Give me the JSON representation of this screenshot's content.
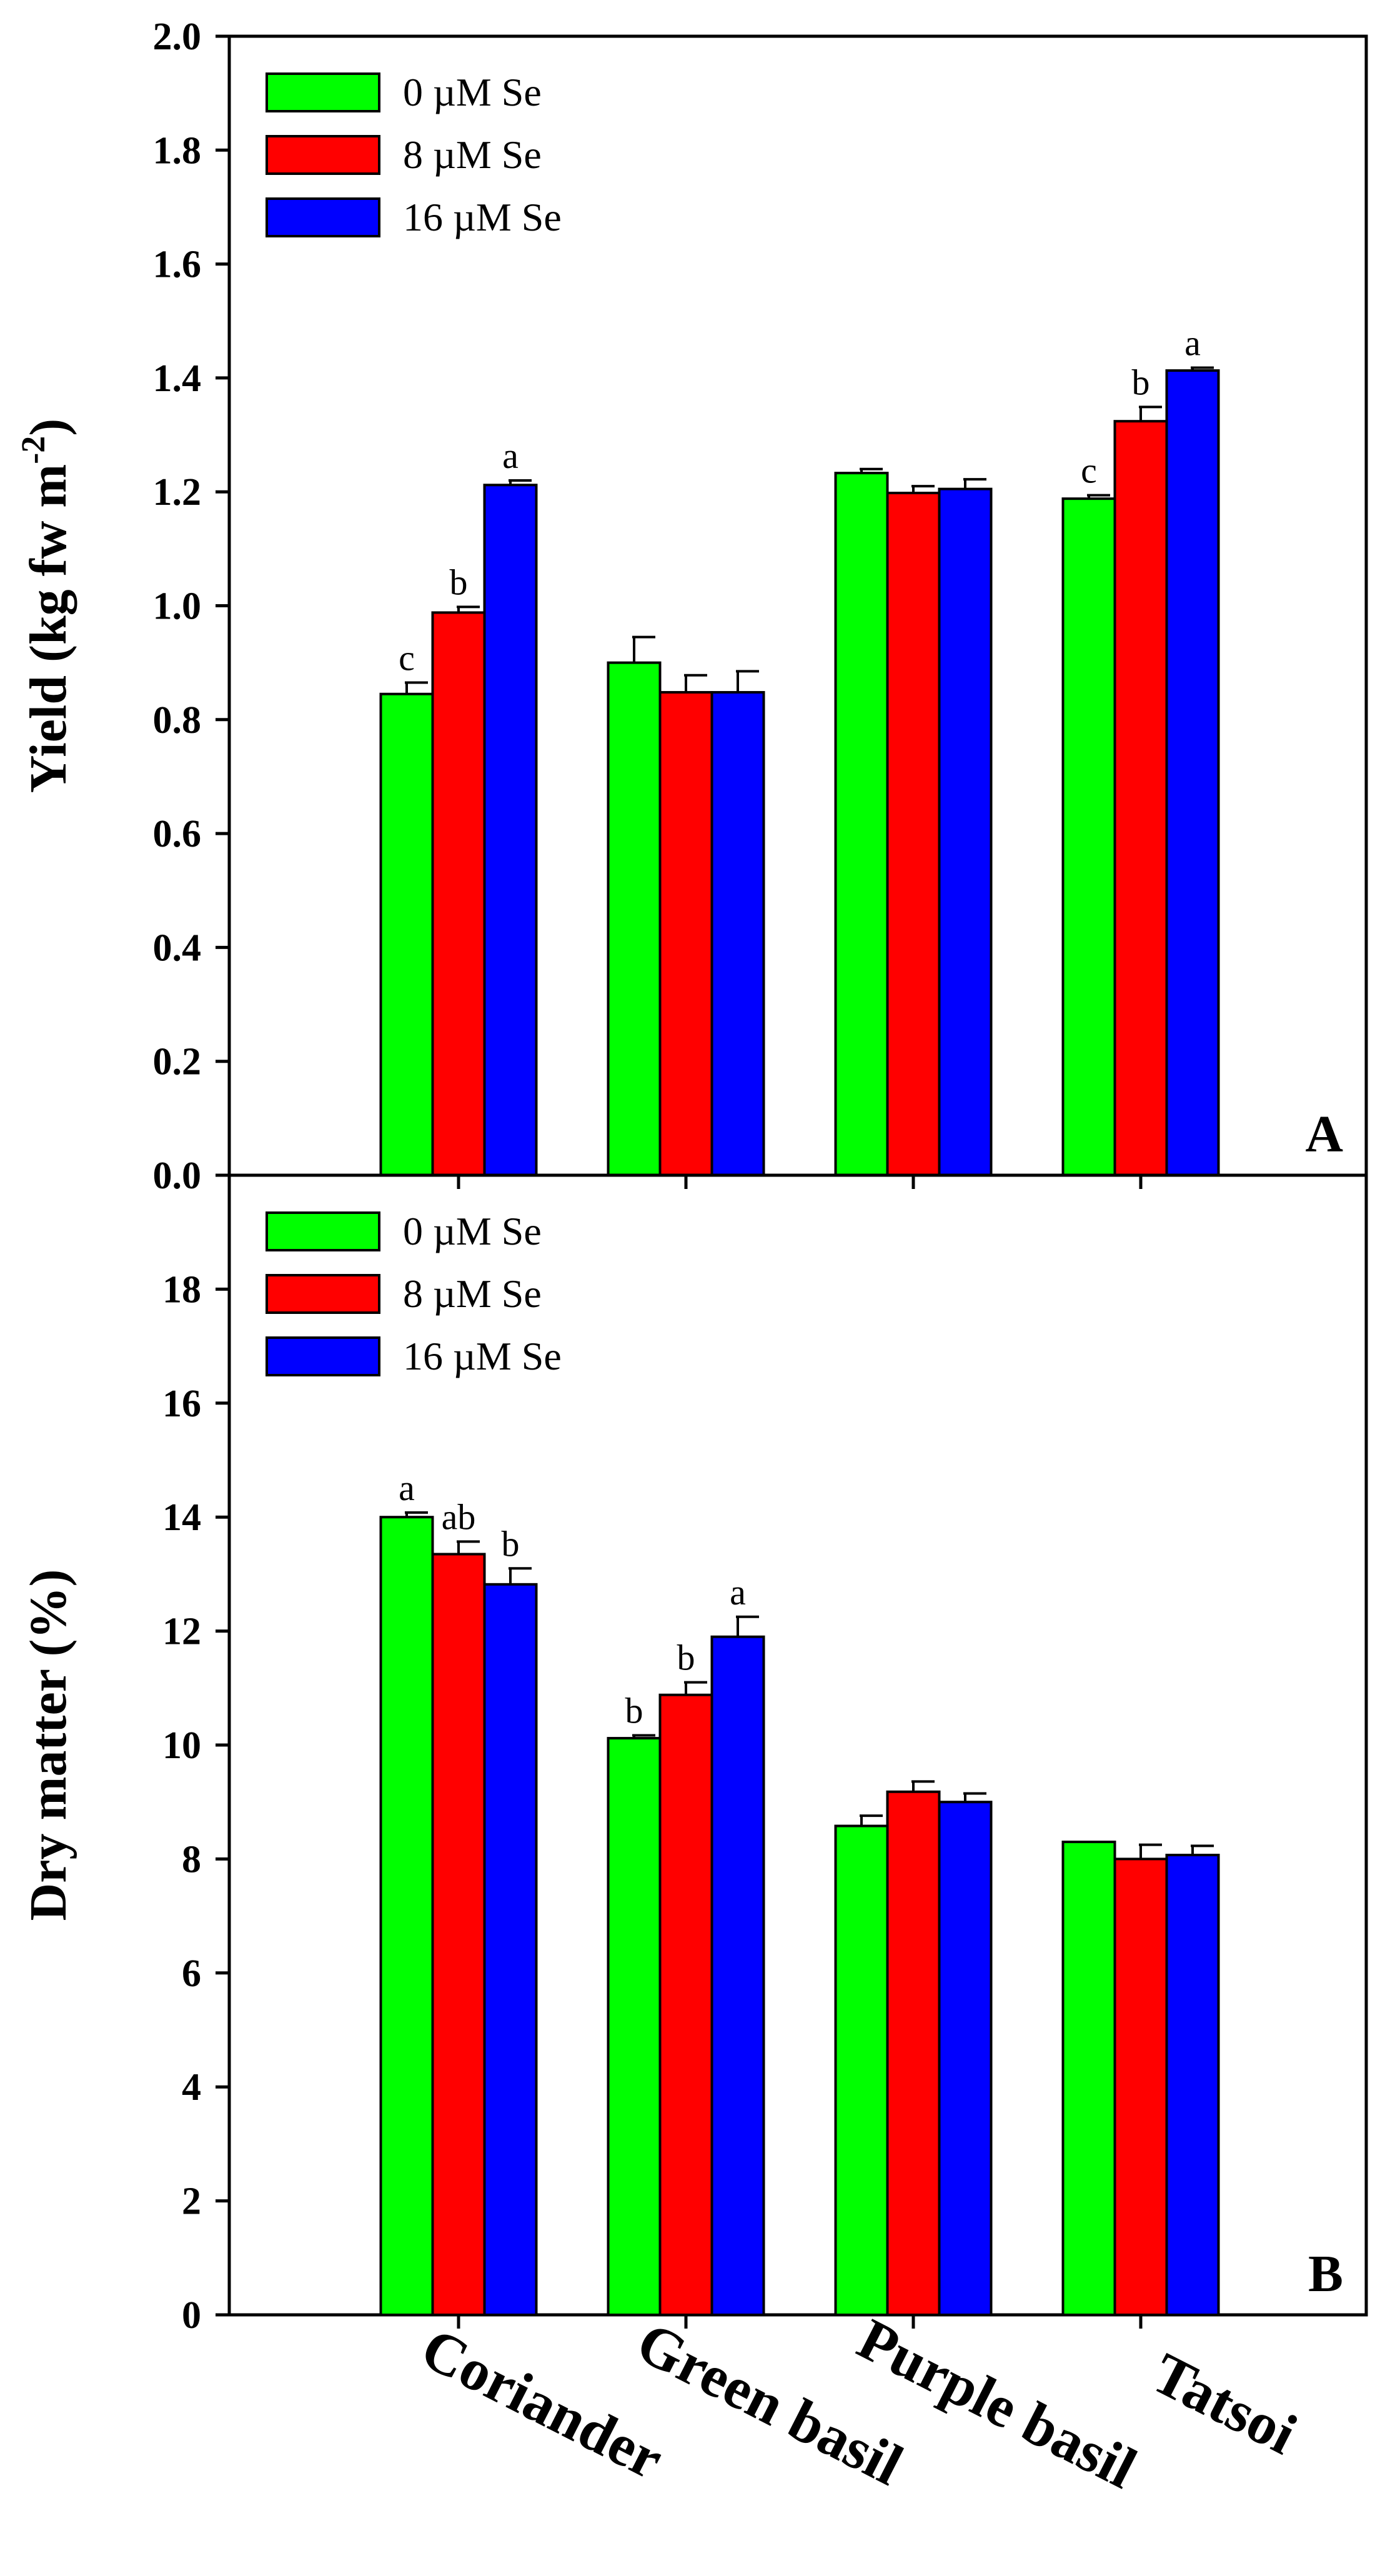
{
  "chart_data": [
    {
      "panel": "A",
      "type": "bar",
      "ylabel": "Yield (kg fw m",
      "ylabel_superscript": "-2",
      "ylabel_close": ")",
      "ylim": [
        0,
        2.0
      ],
      "ytick_values": [
        0,
        0.2,
        0.4,
        0.6,
        0.8,
        1.0,
        1.2,
        1.4,
        1.6,
        1.8,
        2.0
      ],
      "ytick_labels": [
        "0.0",
        "0.2",
        "0.4",
        "0.6",
        "0.8",
        "1.0",
        "1.2",
        "1.4",
        "1.6",
        "1.8",
        "2.0"
      ],
      "categories": [
        "Coriander",
        "Green basil",
        "Purple basil",
        "Tatsoi"
      ],
      "series": [
        {
          "name": "0 µM Se",
          "color": "#00FF00",
          "values": [
            0.845,
            0.9,
            1.233,
            1.188
          ],
          "errors": [
            0.02,
            0.045,
            0.007,
            0.006
          ],
          "labels": [
            "c",
            "",
            "",
            "c"
          ]
        },
        {
          "name": "8 µM Se",
          "color": "#FF0000",
          "values": [
            0.988,
            0.848,
            1.198,
            1.324
          ],
          "errors": [
            0.01,
            0.03,
            0.012,
            0.025
          ],
          "labels": [
            "b",
            "",
            "",
            "b"
          ]
        },
        {
          "name": "16 µM Se",
          "color": "#0000FF",
          "values": [
            1.212,
            0.848,
            1.205,
            1.413
          ],
          "errors": [
            0.008,
            0.037,
            0.017,
            0.005
          ],
          "labels": [
            "a",
            "",
            "",
            "a"
          ]
        }
      ]
    },
    {
      "panel": "B",
      "type": "bar",
      "ylabel": "Dry matter (%)",
      "ylim": [
        0,
        20
      ],
      "ytick_values": [
        0,
        2,
        4,
        6,
        8,
        10,
        12,
        14,
        16,
        18
      ],
      "ytick_labels": [
        "0",
        "2",
        "4",
        "6",
        "8",
        "10",
        "12",
        "14",
        "16",
        "18"
      ],
      "categories": [
        "Coriander",
        "Green basil",
        "Purple basil",
        "Tatsoi"
      ],
      "series": [
        {
          "name": "0 µM Se",
          "color": "#00FF00",
          "values": [
            14.0,
            10.12,
            8.58,
            8.3
          ],
          "errors": [
            0.08,
            0.05,
            0.18,
            0.0
          ],
          "labels": [
            "a",
            "b",
            "",
            ""
          ]
        },
        {
          "name": "8 µM Se",
          "color": "#FF0000",
          "values": [
            13.35,
            10.88,
            9.18,
            8.0
          ],
          "errors": [
            0.22,
            0.22,
            0.18,
            0.25
          ],
          "labels": [
            "ab",
            "b",
            "",
            ""
          ]
        },
        {
          "name": "16 µM Se",
          "color": "#0000FF",
          "values": [
            12.82,
            11.9,
            9.0,
            8.07
          ],
          "errors": [
            0.28,
            0.35,
            0.15,
            0.16
          ],
          "labels": [
            "b",
            "a",
            "",
            ""
          ]
        }
      ]
    }
  ]
}
